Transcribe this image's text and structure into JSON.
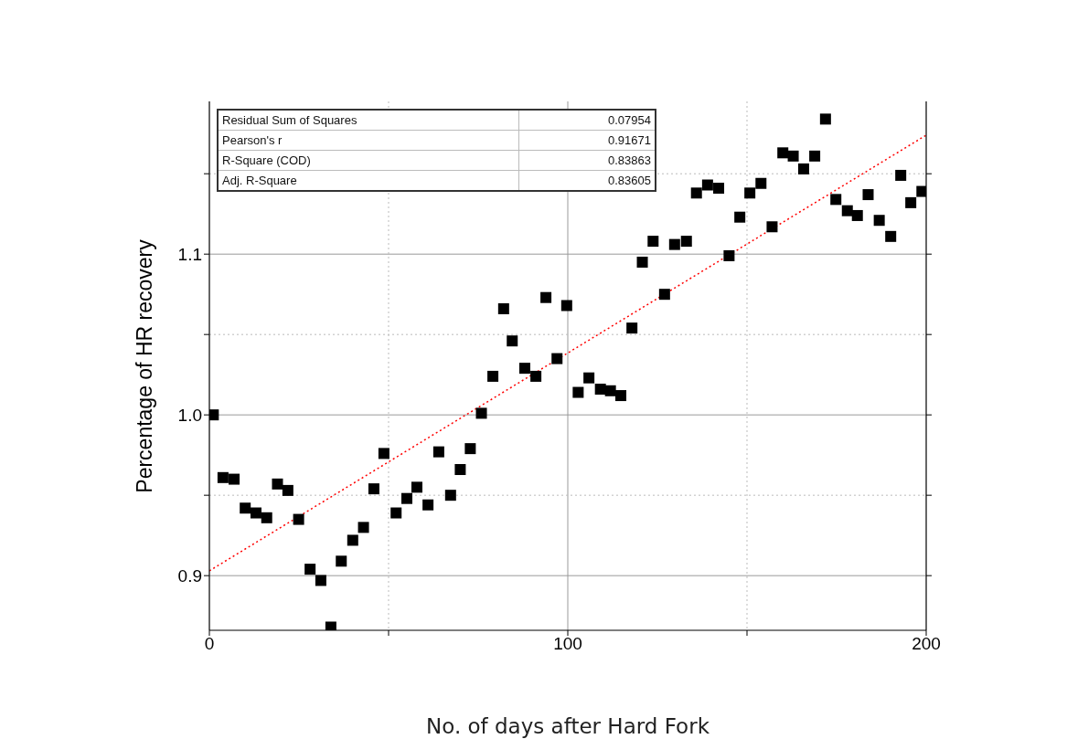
{
  "chart_data": {
    "type": "scatter",
    "xlabel": "No. of days after Hard Fork",
    "ylabel": "Percentage of HR recovery",
    "xlim": [
      0,
      200
    ],
    "xticks": [
      0,
      {
        "value": 50,
        "label": null
      },
      100,
      {
        "value": 150,
        "label": null
      },
      200
    ],
    "ylim": [
      0.866,
      1.195
    ],
    "yticks": [
      0.9,
      {
        "value": 0.95,
        "label": null
      },
      {
        "value": 1.0,
        "label": "1.0"
      },
      {
        "value": 1.05,
        "label": null
      },
      1.1,
      {
        "value": 1.15,
        "label": null
      }
    ],
    "grid": true,
    "marker": "square",
    "annotations": [
      "Residual Sum of Squares",
      "0.07954",
      "Pearson's r",
      "0.91671",
      "R-Square (COD)",
      "0.83863",
      "Adj. R-Square",
      "0.83605"
    ],
    "series": [
      {
        "color": "#000000",
        "x": [
          1.1,
          3.8,
          6.9,
          10.0,
          13.0,
          16.0,
          19.0,
          21.9,
          24.9,
          28.1,
          31.1,
          33.9,
          36.8,
          40.0,
          43.0,
          45.9,
          48.7,
          52.1,
          55.1,
          57.9,
          61.0,
          64.0,
          67.3,
          70.0,
          72.8,
          75.9,
          79.1,
          82.1,
          84.5,
          88.0,
          91.1,
          93.9,
          97.0,
          99.7,
          102.9,
          105.9,
          109.1,
          111.9,
          114.8,
          117.9,
          120.8,
          123.8,
          127.0,
          129.8,
          133.1,
          135.9,
          139.0,
          142.1,
          145.0,
          148.0,
          150.8,
          153.9,
          157.0,
          160.0,
          162.9,
          165.8,
          168.9,
          171.9,
          174.8,
          178.0,
          180.8,
          183.8,
          186.9,
          190.1,
          192.9,
          195.7,
          198.8
        ],
        "values": [
          1.0,
          0.961,
          0.96,
          0.942,
          0.939,
          0.936,
          0.957,
          0.953,
          0.935,
          0.904,
          0.897,
          0.868,
          0.909,
          0.922,
          0.93,
          0.954,
          0.976,
          0.939,
          0.948,
          0.955,
          0.944,
          0.977,
          0.95,
          0.966,
          0.979,
          1.001,
          1.024,
          1.066,
          1.046,
          1.029,
          1.024,
          1.073,
          1.035,
          1.068,
          1.014,
          1.023,
          1.016,
          1.015,
          1.012,
          1.054,
          1.095,
          1.108,
          1.075,
          1.106,
          1.108,
          1.138,
          1.143,
          1.141,
          1.099,
          1.123,
          1.138,
          1.144,
          1.117,
          1.163,
          1.161,
          1.153,
          1.161,
          1.184,
          1.134,
          1.127,
          1.124,
          1.137,
          1.121,
          1.111,
          1.149,
          1.132,
          1.139
        ]
      },
      {
        "type": "line",
        "color": "#ff0000",
        "line_style": "dotted",
        "marker": "none",
        "x": [
          0,
          200
        ],
        "values": [
          0.903,
          1.174
        ]
      }
    ]
  }
}
